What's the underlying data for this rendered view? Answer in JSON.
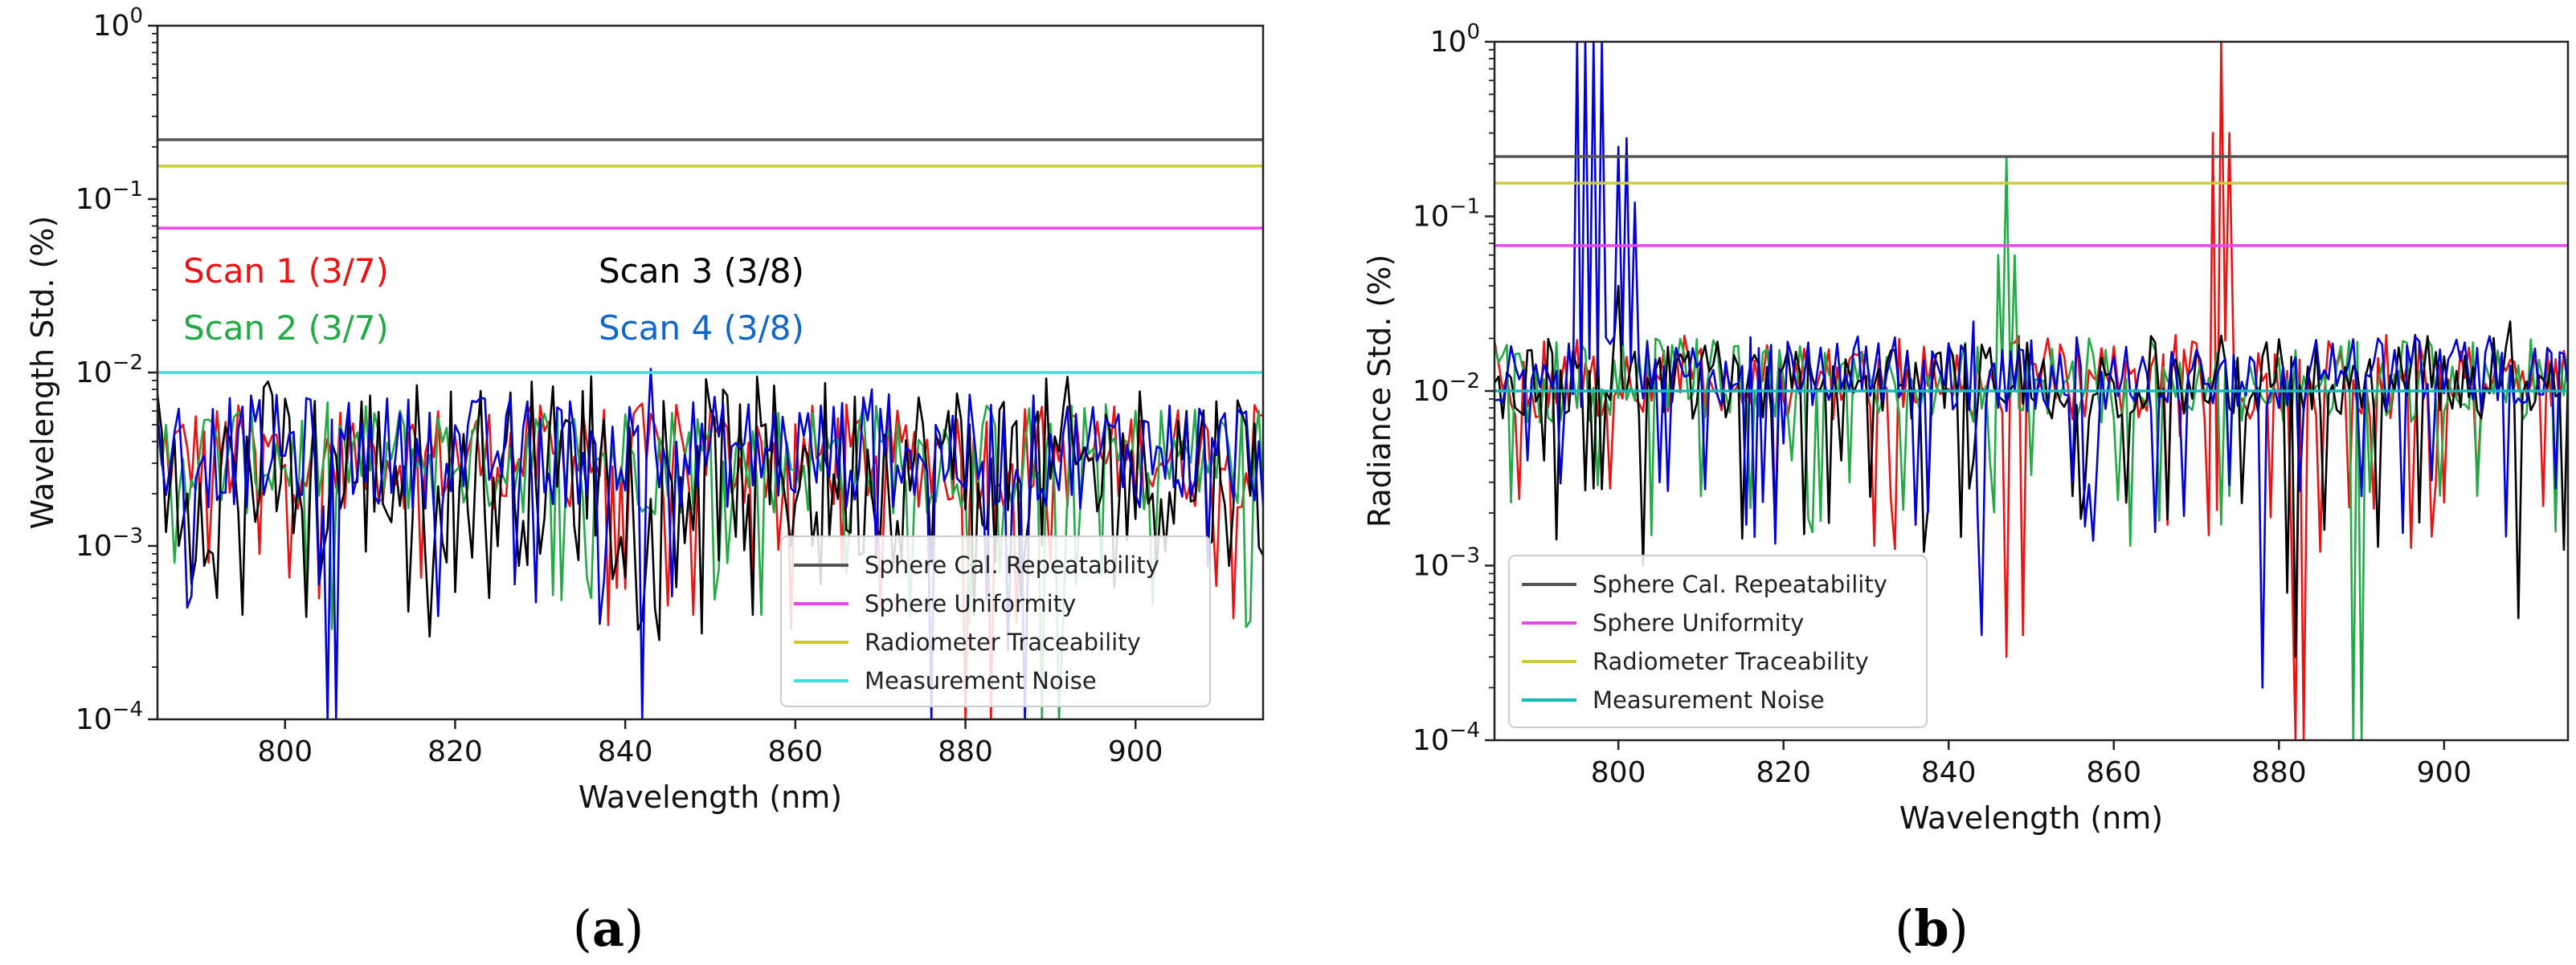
{
  "figure": {
    "panels": [
      {
        "caption_open": "(",
        "caption_letter": "a",
        "caption_close": ")"
      },
      {
        "caption_open": "(",
        "caption_letter": "b",
        "caption_close": ")"
      }
    ]
  },
  "chart_data": [
    {
      "type": "line",
      "panel": "a",
      "yscale": "log",
      "xlabel": "Wavelength (nm)",
      "ylabel": "Wavelength Std. (%)",
      "xlim": [
        785,
        915
      ],
      "ylim": [
        0.0001,
        1
      ],
      "xticks": [
        800,
        820,
        840,
        860,
        880,
        900
      ],
      "yticks": [
        {
          "base": "10",
          "exp": "0"
        },
        {
          "base": "10",
          "exp": "−1"
        },
        {
          "base": "10",
          "exp": "−2"
        },
        {
          "base": "10",
          "exp": "−3"
        },
        {
          "base": "10",
          "exp": "−4"
        }
      ],
      "reference_lines": [
        {
          "name": "Sphere Cal. Repeatability",
          "value": 0.22,
          "color": "#555555"
        },
        {
          "name": "Sphere Uniformity",
          "value": 0.068,
          "color": "#ee44ee"
        },
        {
          "name": "Radiometer Traceability",
          "value": 0.155,
          "color": "#cccc33"
        },
        {
          "name": "Measurement Noise",
          "value": 0.01,
          "color": "#44dddd"
        }
      ],
      "legend": {
        "position": "lower-right",
        "entries": [
          "Sphere Cal. Repeatability",
          "Sphere Uniformity",
          "Radiometer Traceability",
          "Measurement Noise"
        ]
      },
      "annotations": [
        {
          "text": "Scan 1 (3/7)",
          "color": "#ee1111"
        },
        {
          "text": "Scan 2 (3/7)",
          "color": "#22aa44"
        },
        {
          "text": "Scan 3 (3/8)",
          "color": "#000000"
        },
        {
          "text": "Scan 4 (3/8)",
          "color": "#1166cc"
        }
      ],
      "series": [
        {
          "name": "Scan 1",
          "color": "#ee1111",
          "base": 0.0033,
          "spread": 0.28,
          "dips": [
            [
              791,
              0.0008
            ],
            [
              797,
              0.0009
            ],
            [
              838,
              0.00035
            ],
            [
              846,
              0.0007
            ],
            [
              848,
              0.0004
            ],
            [
              858,
              0.00095
            ],
            [
              880,
              0.0001
            ],
            [
              883,
              0.0001
            ],
            [
              890,
              0.0008
            ]
          ],
          "spikes": [
            [
              835,
              0.006
            ],
            [
              846,
              0.0065
            ],
            [
              850,
              0.006
            ]
          ]
        },
        {
          "name": "Scan 2",
          "color": "#22aa44",
          "base": 0.0032,
          "spread": 0.3,
          "dips": [
            [
              787,
              0.0008
            ],
            [
              836,
              0.0005
            ],
            [
              856,
              0.0004
            ],
            [
              866,
              0.0007
            ],
            [
              884,
              0.0007
            ],
            [
              889,
              0.0001
            ],
            [
              891,
              0.0001
            ],
            [
              893,
              0.0006
            ]
          ],
          "spikes": [
            [
              832,
              0.006
            ],
            [
              868,
              0.0065
            ]
          ]
        },
        {
          "name": "Scan 3",
          "color": "#000000",
          "base": 0.0027,
          "spread": 0.5,
          "dips": [
            [
              789,
              0.0006
            ],
            [
              792,
              0.0005
            ],
            [
              795,
              0.0004
            ],
            [
              804,
              0.0006
            ],
            [
              817,
              0.0003
            ],
            [
              824,
              0.0005
            ],
            [
              855,
              0.0004
            ],
            [
              863,
              0.0006
            ],
            [
              881,
              0.0004
            ]
          ],
          "spikes": [
            [
              836,
              0.0095
            ],
            [
              878,
              0.006
            ],
            [
              906,
              0.006
            ]
          ]
        },
        {
          "name": "Scan 4",
          "color": "#0000dd",
          "base": 0.0035,
          "spread": 0.3,
          "dips": [
            [
              804,
              0.0006
            ],
            [
              805,
              0.0001
            ],
            [
              806,
              0.0001
            ],
            [
              827,
              0.0006
            ],
            [
              842,
              0.0001
            ],
            [
              843,
              0.0001
            ],
            [
              876,
              0.0001
            ],
            [
              885,
              0.00025
            ],
            [
              887,
              0.0001
            ]
          ],
          "spikes": [
            [
              843,
              0.0105
            ],
            [
              869,
              0.008
            ],
            [
              871,
              0.0075
            ]
          ]
        }
      ]
    },
    {
      "type": "line",
      "panel": "b",
      "yscale": "log",
      "xlabel": "Wavelength (nm)",
      "ylabel": "Radiance Std. (%)",
      "xlim": [
        785,
        915
      ],
      "ylim": [
        0.0001,
        1
      ],
      "xticks": [
        800,
        820,
        840,
        860,
        880,
        900
      ],
      "yticks": [
        {
          "base": "10",
          "exp": "0"
        },
        {
          "base": "10",
          "exp": "−1"
        },
        {
          "base": "10",
          "exp": "−2"
        },
        {
          "base": "10",
          "exp": "−3"
        },
        {
          "base": "10",
          "exp": "−4"
        }
      ],
      "reference_lines": [
        {
          "name": "Sphere Cal. Repeatability",
          "value": 0.22,
          "color": "#555555"
        },
        {
          "name": "Sphere Uniformity",
          "value": 0.068,
          "color": "#ee44ee"
        },
        {
          "name": "Radiometer Traceability",
          "value": 0.155,
          "color": "#cccc33"
        },
        {
          "name": "Measurement Noise",
          "value": 0.01,
          "color": "#11bbbb"
        }
      ],
      "legend": {
        "position": "lower-left",
        "entries": [
          "Sphere Cal. Repeatability",
          "Sphere Uniformity",
          "Radiometer Traceability",
          "Measurement Noise"
        ]
      },
      "annotations": [],
      "series": [
        {
          "name": "Scan 1",
          "color": "#ee1111",
          "base": 0.012,
          "spread": 0.22,
          "dips": [
            [
              819,
              0.0017
            ],
            [
              831,
              0.0013
            ],
            [
              847,
              0.0003
            ],
            [
              849,
              0.0004
            ],
            [
              868,
              0.0055
            ],
            [
              882,
              0.0001
            ],
            [
              883,
              0.0001
            ],
            [
              885,
              0.0012
            ],
            [
              899,
              0.003
            ],
            [
              904,
              0.003
            ]
          ],
          "spikes": [
            [
              872,
              0.3
            ],
            [
              873,
              1.0
            ],
            [
              874,
              0.3
            ],
            [
              860,
              0.018
            ]
          ]
        },
        {
          "name": "Scan 2",
          "color": "#22aa44",
          "base": 0.0115,
          "spread": 0.22,
          "dips": [
            [
              787,
              0.0023
            ],
            [
              810,
              0.0025
            ],
            [
              821,
              0.004
            ],
            [
              828,
              0.003
            ],
            [
              845,
              0.004
            ],
            [
              850,
              0.0033
            ],
            [
              862,
              0.0013
            ],
            [
              874,
              0.0025
            ],
            [
              889,
              0.0001
            ],
            [
              890,
              0.0001
            ],
            [
              904,
              0.0025
            ]
          ],
          "spikes": [
            [
              846,
              0.06
            ],
            [
              847,
              0.22
            ],
            [
              848,
              0.06
            ]
          ]
        },
        {
          "name": "Scan 3",
          "color": "#000000",
          "base": 0.012,
          "spread": 0.22,
          "dips": [
            [
              791,
              0.004
            ],
            [
              796,
              0.0027
            ],
            [
              803,
              0.001
            ],
            [
              827,
              0.004
            ],
            [
              837,
              0.0012
            ],
            [
              843,
              0.004
            ],
            [
              855,
              0.0025
            ],
            [
              881,
              0.0007
            ],
            [
              882,
              0.0003
            ],
            [
              909,
              0.0005
            ]
          ],
          "spikes": [
            [
              800,
              0.04
            ],
            [
              835,
              0.017
            ],
            [
              908,
              0.025
            ]
          ]
        },
        {
          "name": "Scan 4",
          "color": "#0000dd",
          "base": 0.0125,
          "spread": 0.2,
          "dips": [
            [
              789,
              0.004
            ],
            [
              805,
              0.003
            ],
            [
              820,
              0.005
            ],
            [
              844,
              0.0004
            ],
            [
              858,
              0.004
            ],
            [
              878,
              0.0002
            ],
            [
              890,
              0.0025
            ]
          ],
          "spikes": [
            [
              795,
              1.0
            ],
            [
              796,
              1.0
            ],
            [
              797,
              1.0
            ],
            [
              798,
              1.0
            ],
            [
              800,
              0.25
            ],
            [
              801,
              0.28
            ],
            [
              802,
              0.12
            ],
            [
              830,
              0.018
            ],
            [
              843,
              0.025
            ],
            [
              892,
              0.02
            ]
          ]
        }
      ]
    }
  ]
}
